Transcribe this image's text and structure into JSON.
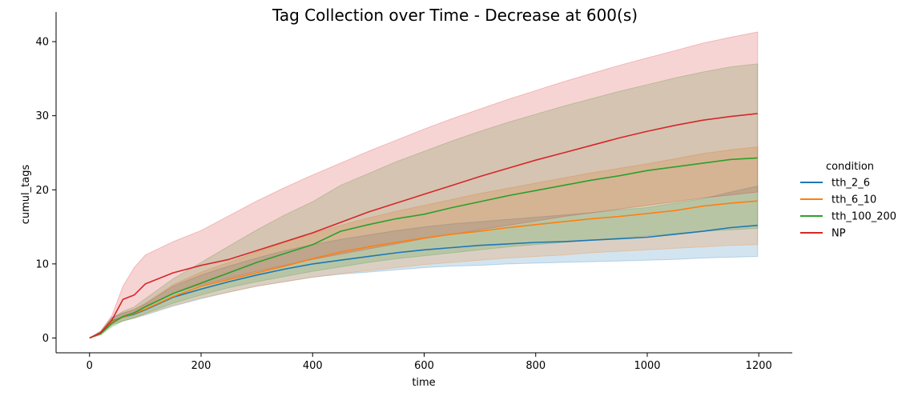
{
  "chart_data": {
    "type": "line",
    "title": "Tag Collection over Time - Decrease at 600(s)",
    "xlabel": "time",
    "ylabel": "cumul_tags",
    "xlim": [
      -60,
      1260
    ],
    "ylim": [
      -2,
      44
    ],
    "xticks": [
      0,
      200,
      400,
      600,
      800,
      1000,
      1200
    ],
    "yticks": [
      0,
      10,
      20,
      30,
      40
    ],
    "grid": false,
    "legend": {
      "title": "condition",
      "position": "right"
    },
    "x": [
      0,
      20,
      40,
      60,
      80,
      100,
      150,
      200,
      250,
      300,
      350,
      400,
      450,
      500,
      550,
      600,
      650,
      700,
      750,
      800,
      850,
      900,
      950,
      1000,
      1050,
      1100,
      1150,
      1198
    ],
    "series": [
      {
        "name": "tth_2_6",
        "color": "#1f77b4",
        "values": [
          0,
          0.7,
          2.3,
          2.8,
          3.2,
          3.8,
          5.5,
          6.6,
          7.6,
          8.5,
          9.3,
          10.0,
          10.5,
          11.0,
          11.5,
          11.9,
          12.2,
          12.5,
          12.7,
          12.9,
          13.0,
          13.2,
          13.4,
          13.6,
          14.0,
          14.4,
          14.9,
          15.2
        ],
        "lower": [
          0,
          0.5,
          1.8,
          2.3,
          2.7,
          3.1,
          4.3,
          5.3,
          6.2,
          7.0,
          7.6,
          8.2,
          8.6,
          8.9,
          9.2,
          9.5,
          9.7,
          9.8,
          10.0,
          10.1,
          10.2,
          10.3,
          10.4,
          10.5,
          10.6,
          10.8,
          10.9,
          11.0
        ],
        "upper": [
          0,
          0.9,
          2.8,
          3.4,
          3.8,
          4.6,
          7.0,
          8.5,
          9.7,
          10.8,
          11.8,
          12.6,
          13.3,
          13.9,
          14.5,
          15.0,
          15.4,
          15.7,
          16.0,
          16.3,
          16.6,
          16.9,
          17.3,
          17.6,
          18.2,
          18.8,
          19.7,
          20.5
        ]
      },
      {
        "name": "tth_6_10",
        "color": "#ff7f0e",
        "values": [
          0,
          0.7,
          2.2,
          2.8,
          3.3,
          3.9,
          5.6,
          7.0,
          7.9,
          8.8,
          9.7,
          10.7,
          11.6,
          12.3,
          12.9,
          13.5,
          14.0,
          14.4,
          14.9,
          15.3,
          15.7,
          16.1,
          16.4,
          16.8,
          17.2,
          17.8,
          18.2,
          18.5
        ],
        "lower": [
          0,
          0.5,
          1.7,
          2.3,
          2.7,
          3.2,
          4.4,
          5.4,
          6.2,
          7.0,
          7.6,
          8.2,
          8.7,
          9.1,
          9.5,
          9.9,
          10.2,
          10.5,
          10.8,
          11.0,
          11.2,
          11.5,
          11.7,
          11.9,
          12.1,
          12.3,
          12.5,
          12.6
        ],
        "upper": [
          0,
          0.9,
          2.7,
          3.3,
          3.9,
          4.7,
          7.2,
          8.9,
          10.2,
          11.6,
          12.9,
          14.1,
          15.2,
          16.2,
          17.1,
          17.9,
          18.7,
          19.5,
          20.2,
          20.9,
          21.6,
          22.3,
          22.9,
          23.5,
          24.2,
          24.9,
          25.4,
          25.8
        ]
      },
      {
        "name": "tth_100_200",
        "color": "#2ca02c",
        "values": [
          0,
          0.6,
          2.0,
          2.9,
          3.4,
          4.2,
          6.0,
          7.4,
          8.8,
          10.2,
          11.4,
          12.6,
          14.4,
          15.3,
          16.1,
          16.7,
          17.6,
          18.4,
          19.2,
          19.9,
          20.6,
          21.3,
          21.9,
          22.6,
          23.1,
          23.6,
          24.1,
          24.3
        ],
        "lower": [
          0,
          0.4,
          1.5,
          2.3,
          2.7,
          3.3,
          4.7,
          5.8,
          6.8,
          7.6,
          8.3,
          9.0,
          9.6,
          10.2,
          10.7,
          11.1,
          11.5,
          11.9,
          12.3,
          12.6,
          12.9,
          13.2,
          13.5,
          13.8,
          14.1,
          14.4,
          14.6,
          14.8
        ],
        "upper": [
          0,
          0.8,
          2.6,
          3.6,
          4.2,
          5.3,
          8.0,
          10.2,
          12.4,
          14.6,
          16.6,
          18.4,
          20.6,
          22.2,
          23.8,
          25.2,
          26.6,
          27.9,
          29.1,
          30.2,
          31.3,
          32.3,
          33.3,
          34.2,
          35.1,
          35.9,
          36.6,
          37.0
        ]
      },
      {
        "name": "NP",
        "color": "#d62728",
        "values": [
          0,
          0.7,
          2.4,
          5.2,
          5.8,
          7.3,
          8.8,
          9.8,
          10.6,
          11.8,
          13.0,
          14.2,
          15.6,
          17.0,
          18.2,
          19.4,
          20.6,
          21.8,
          22.9,
          24.0,
          25.0,
          26.0,
          27.0,
          27.9,
          28.7,
          29.4,
          29.9,
          30.3
        ],
        "lower": [
          0,
          0.5,
          1.9,
          2.8,
          3.4,
          4.3,
          6.0,
          7.2,
          8.1,
          9.0,
          9.8,
          10.6,
          11.3,
          12.0,
          12.7,
          13.4,
          14.0,
          14.6,
          15.2,
          15.8,
          16.4,
          16.9,
          17.4,
          17.9,
          18.4,
          18.9,
          19.3,
          19.7
        ],
        "upper": [
          0,
          0.9,
          3.0,
          7.0,
          9.5,
          11.2,
          13.0,
          14.5,
          16.5,
          18.5,
          20.3,
          22.0,
          23.6,
          25.2,
          26.7,
          28.2,
          29.6,
          30.9,
          32.2,
          33.4,
          34.6,
          35.7,
          36.8,
          37.8,
          38.8,
          39.8,
          40.6,
          41.3
        ]
      }
    ]
  }
}
